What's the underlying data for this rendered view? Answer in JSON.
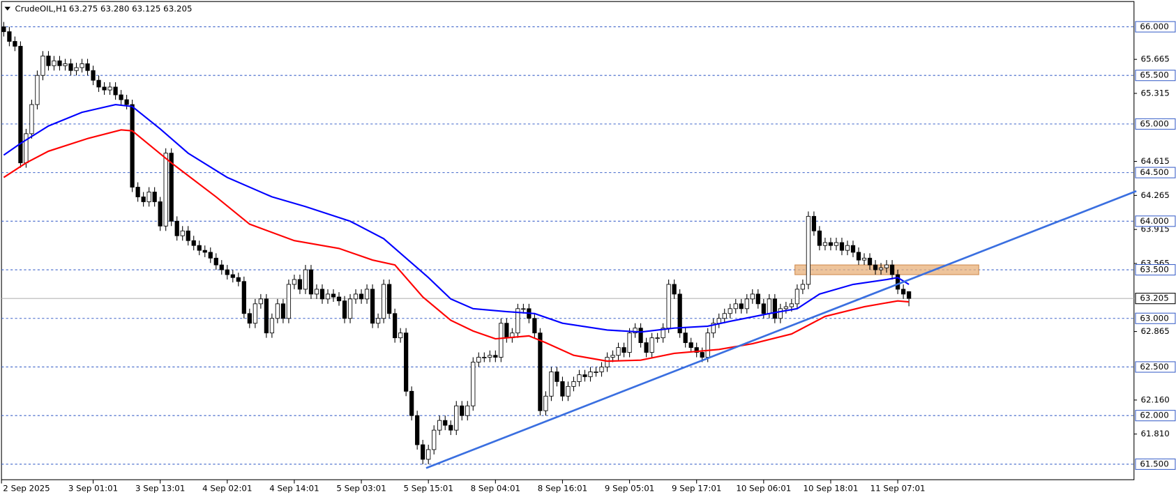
{
  "chart_data": {
    "type": "candlestick",
    "symbol": "CrudeOIL,H1",
    "quote": "63.275 63.280 63.125 63.205",
    "categories": [
      "2 Sep 2025",
      null,
      null,
      null,
      null,
      null,
      null,
      null,
      null,
      null,
      null,
      null,
      null,
      null,
      null,
      null,
      "3 Sep 01:01",
      null,
      null,
      null,
      null,
      null,
      null,
      null,
      null,
      null,
      null,
      null,
      "3 Sep 13:01",
      null,
      null,
      null,
      null,
      null,
      null,
      null,
      null,
      null,
      null,
      null,
      "4 Sep 02:01",
      null,
      null,
      null,
      null,
      null,
      null,
      null,
      null,
      null,
      null,
      null,
      "4 Sep 14:01",
      null,
      null,
      null,
      null,
      null,
      null,
      null,
      null,
      null,
      null,
      null,
      "5 Sep 03:01",
      null,
      null,
      null,
      null,
      null,
      null,
      null,
      null,
      null,
      null,
      null,
      "5 Sep 15:01",
      null,
      null,
      null,
      null,
      null,
      null,
      null,
      null,
      null,
      null,
      null,
      "8 Sep 04:01",
      null,
      null,
      null,
      null,
      null,
      null,
      null,
      null,
      null,
      null,
      null,
      "8 Sep 16:01",
      null,
      null,
      null,
      null,
      null,
      null,
      null,
      null,
      null,
      null,
      null,
      "9 Sep 05:01",
      null,
      null,
      null,
      null,
      null,
      null,
      null,
      null,
      null,
      null,
      null,
      "9 Sep 17:01",
      null,
      null,
      null,
      null,
      null,
      null,
      null,
      null,
      null,
      null,
      null,
      "10 Sep 06:01",
      null,
      null,
      null,
      null,
      null,
      null,
      null,
      null,
      null,
      null,
      null,
      "10 Sep 18:01",
      null,
      null,
      null,
      null,
      null,
      null,
      null,
      null,
      null,
      null,
      null,
      "11 Sep 07:01",
      null,
      null
    ],
    "open": [
      66.0,
      65.95,
      65.85,
      65.8,
      64.6,
      64.9,
      65.2,
      65.5,
      65.7,
      65.6,
      65.65,
      65.6,
      65.62,
      65.55,
      65.58,
      65.62,
      65.55,
      65.45,
      65.38,
      65.35,
      65.38,
      65.3,
      65.25,
      65.2,
      64.35,
      64.25,
      64.2,
      64.3,
      64.2,
      63.95,
      64.7,
      64.0,
      63.85,
      63.9,
      63.8,
      63.75,
      63.7,
      63.68,
      63.62,
      63.55,
      63.5,
      63.45,
      63.42,
      63.38,
      63.05,
      62.95,
      63.15,
      63.2,
      62.85,
      63.0,
      63.15,
      63.0,
      63.35,
      63.4,
      63.3,
      63.5,
      63.25,
      63.3,
      63.2,
      63.25,
      63.22,
      63.18,
      63.0,
      63.2,
      63.25,
      63.2,
      63.3,
      62.95,
      63.0,
      63.35,
      63.05,
      62.8,
      62.85,
      62.25,
      62.0,
      61.7,
      61.55,
      61.65,
      61.85,
      61.95,
      61.9,
      61.85,
      62.1,
      62.0,
      62.1,
      62.55,
      62.6,
      62.6,
      62.62,
      62.6,
      62.95,
      62.8,
      62.85,
      63.1,
      63.1,
      63.0,
      62.85,
      62.05,
      62.2,
      62.45,
      62.35,
      62.2,
      62.3,
      62.35,
      62.42,
      62.4,
      62.45,
      62.45,
      62.5,
      62.6,
      62.62,
      62.7,
      62.65,
      62.85,
      62.9,
      62.75,
      62.65,
      62.8,
      62.8,
      62.9,
      63.35,
      63.25,
      62.85,
      62.75,
      62.7,
      62.65,
      62.6,
      62.85,
      62.95,
      63.0,
      63.05,
      63.1,
      63.15,
      63.1,
      63.2,
      63.25,
      63.15,
      63.05,
      63.2,
      63.0,
      63.1,
      63.12,
      63.15,
      63.3,
      63.35,
      64.05,
      63.9,
      63.75,
      63.78,
      63.75,
      63.78,
      63.7,
      63.75,
      63.68,
      63.6,
      63.62,
      63.55,
      63.5,
      63.52,
      63.55,
      63.45,
      63.3,
      63.275
    ],
    "high": [
      66.05,
      66.0,
      65.9,
      65.85,
      64.95,
      65.25,
      65.55,
      65.75,
      65.75,
      65.7,
      65.7,
      65.67,
      65.67,
      65.63,
      65.67,
      65.67,
      65.6,
      65.5,
      65.43,
      65.43,
      65.43,
      65.35,
      65.3,
      65.25,
      64.4,
      64.3,
      64.35,
      64.35,
      64.25,
      64.75,
      64.75,
      64.05,
      63.95,
      63.95,
      63.85,
      63.8,
      63.75,
      63.73,
      63.67,
      63.6,
      63.55,
      63.5,
      63.47,
      63.43,
      63.1,
      63.2,
      63.25,
      63.25,
      63.05,
      63.2,
      63.2,
      63.4,
      63.45,
      63.45,
      63.55,
      63.55,
      63.35,
      63.35,
      63.3,
      63.3,
      63.27,
      63.23,
      63.25,
      63.3,
      63.3,
      63.35,
      63.35,
      63.05,
      63.4,
      63.4,
      63.1,
      62.9,
      62.9,
      62.3,
      62.05,
      61.75,
      61.7,
      61.9,
      62.0,
      62.0,
      61.95,
      62.15,
      62.15,
      62.15,
      62.6,
      62.65,
      62.65,
      62.67,
      62.67,
      63.0,
      63.0,
      62.9,
      63.15,
      63.15,
      63.15,
      63.05,
      62.9,
      62.25,
      62.5,
      62.5,
      62.4,
      62.35,
      62.4,
      62.47,
      62.47,
      62.5,
      62.5,
      62.55,
      62.65,
      62.67,
      62.75,
      62.75,
      62.9,
      62.95,
      62.95,
      62.8,
      62.85,
      62.85,
      62.95,
      63.4,
      63.4,
      63.3,
      62.9,
      62.8,
      62.75,
      62.7,
      62.9,
      63.0,
      63.05,
      63.1,
      63.15,
      63.2,
      63.2,
      63.25,
      63.3,
      63.3,
      63.2,
      63.25,
      63.25,
      63.15,
      63.17,
      63.2,
      63.35,
      63.4,
      64.1,
      64.1,
      63.95,
      63.83,
      63.83,
      63.83,
      63.83,
      63.8,
      63.8,
      63.73,
      63.67,
      63.67,
      63.6,
      63.57,
      63.6,
      63.6,
      63.5,
      63.35,
      63.28
    ],
    "low": [
      65.9,
      65.8,
      65.75,
      64.55,
      64.55,
      64.85,
      65.15,
      65.45,
      65.55,
      65.55,
      65.55,
      65.55,
      65.5,
      65.5,
      65.53,
      65.5,
      65.4,
      65.33,
      65.3,
      65.3,
      65.25,
      65.2,
      65.15,
      64.3,
      64.2,
      64.15,
      64.15,
      64.15,
      63.9,
      63.9,
      63.95,
      63.8,
      63.8,
      63.75,
      63.7,
      63.65,
      63.63,
      63.57,
      63.5,
      63.45,
      63.4,
      63.37,
      63.33,
      63.0,
      62.9,
      62.9,
      63.1,
      62.8,
      62.8,
      62.95,
      62.95,
      62.95,
      63.3,
      63.25,
      63.25,
      63.2,
      63.2,
      63.15,
      63.15,
      63.17,
      63.13,
      62.95,
      62.95,
      63.15,
      63.15,
      63.15,
      62.9,
      62.9,
      62.95,
      63.0,
      62.75,
      62.75,
      62.2,
      61.95,
      61.65,
      61.5,
      61.5,
      61.6,
      61.8,
      61.85,
      61.8,
      61.8,
      61.95,
      61.95,
      62.05,
      62.5,
      62.55,
      62.55,
      62.55,
      62.55,
      62.75,
      62.75,
      62.8,
      63.05,
      62.95,
      62.8,
      62.0,
      62.0,
      62.15,
      62.3,
      62.15,
      62.15,
      62.25,
      62.3,
      62.35,
      62.35,
      62.4,
      62.4,
      62.45,
      62.55,
      62.57,
      62.6,
      62.6,
      62.8,
      62.7,
      62.6,
      62.6,
      62.75,
      62.75,
      62.85,
      63.2,
      62.8,
      62.7,
      62.65,
      62.6,
      62.55,
      62.55,
      62.8,
      62.9,
      62.95,
      63.0,
      63.05,
      63.05,
      63.05,
      63.15,
      63.1,
      63.0,
      63.0,
      62.95,
      62.95,
      63.05,
      63.07,
      63.1,
      63.25,
      63.3,
      63.85,
      63.7,
      63.7,
      63.7,
      63.7,
      63.65,
      63.65,
      63.63,
      63.55,
      63.55,
      63.5,
      63.45,
      63.45,
      63.47,
      63.4,
      63.25,
      63.2,
      63.125
    ],
    "close": [
      65.95,
      65.85,
      65.8,
      64.6,
      64.9,
      65.2,
      65.5,
      65.7,
      65.6,
      65.65,
      65.6,
      65.62,
      65.55,
      65.58,
      65.62,
      65.55,
      65.45,
      65.38,
      65.35,
      65.38,
      65.3,
      65.25,
      65.2,
      64.35,
      64.25,
      64.2,
      64.3,
      64.2,
      63.95,
      64.7,
      64.0,
      63.85,
      63.9,
      63.8,
      63.75,
      63.7,
      63.68,
      63.62,
      63.55,
      63.5,
      63.45,
      63.42,
      63.38,
      63.05,
      62.95,
      63.15,
      63.2,
      62.85,
      63.0,
      63.15,
      63.0,
      63.35,
      63.4,
      63.3,
      63.5,
      63.25,
      63.3,
      63.2,
      63.25,
      63.22,
      63.18,
      63.0,
      63.2,
      63.25,
      63.2,
      63.3,
      62.95,
      63.0,
      63.35,
      63.05,
      62.8,
      62.85,
      62.25,
      62.0,
      61.7,
      61.55,
      61.65,
      61.85,
      61.95,
      61.9,
      61.85,
      62.1,
      62.0,
      62.1,
      62.55,
      62.6,
      62.6,
      62.62,
      62.6,
      62.95,
      62.8,
      62.85,
      63.1,
      63.1,
      63.0,
      62.85,
      62.05,
      62.2,
      62.45,
      62.35,
      62.2,
      62.3,
      62.35,
      62.42,
      62.4,
      62.45,
      62.45,
      62.5,
      62.6,
      62.62,
      62.7,
      62.65,
      62.85,
      62.9,
      62.75,
      62.65,
      62.8,
      62.8,
      62.9,
      63.35,
      63.25,
      62.85,
      62.75,
      62.7,
      62.65,
      62.6,
      62.85,
      62.95,
      63.0,
      63.05,
      63.1,
      63.15,
      63.1,
      63.2,
      63.25,
      63.15,
      63.05,
      63.2,
      63.0,
      63.1,
      63.12,
      63.15,
      63.3,
      63.35,
      64.05,
      63.9,
      63.75,
      63.78,
      63.75,
      63.78,
      63.7,
      63.75,
      63.68,
      63.6,
      63.62,
      63.55,
      63.5,
      63.52,
      63.55,
      63.45,
      63.3,
      63.25,
      63.205
    ],
    "lines": [
      {
        "color": "#0000ff",
        "x": [
          0,
          3,
          8,
          14,
          20,
          23,
          28,
          33,
          40,
          48,
          54,
          62,
          68,
          72,
          76,
          80,
          84,
          90,
          95,
          100,
          108,
          114,
          120,
          126,
          130,
          137,
          142,
          146,
          152,
          158,
          160,
          162
        ],
        "values": [
          64.68,
          64.8,
          64.98,
          65.12,
          65.2,
          65.18,
          64.95,
          64.7,
          64.45,
          64.25,
          64.15,
          64.0,
          63.82,
          63.62,
          63.42,
          63.2,
          63.1,
          63.07,
          63.05,
          62.95,
          62.88,
          62.86,
          62.9,
          62.92,
          62.97,
          63.05,
          63.1,
          63.25,
          63.35,
          63.4,
          63.42,
          63.35
        ]
      },
      {
        "color": "#ff0000",
        "x": [
          0,
          4,
          8,
          15,
          21,
          23,
          30,
          38,
          44,
          52,
          60,
          66,
          70,
          75,
          80,
          84,
          88,
          94,
          97,
          102,
          108,
          114,
          120,
          128,
          134,
          141,
          147,
          154,
          160,
          162
        ],
        "values": [
          64.45,
          64.6,
          64.72,
          64.85,
          64.94,
          64.93,
          64.6,
          64.25,
          63.97,
          63.8,
          63.72,
          63.6,
          63.55,
          63.22,
          62.98,
          62.87,
          62.79,
          62.82,
          62.75,
          62.62,
          62.56,
          62.57,
          62.64,
          62.68,
          62.74,
          62.84,
          63.02,
          63.12,
          63.18,
          63.17
        ]
      }
    ],
    "trendline": {
      "color": "#3a6fe0",
      "x": [
        75.6,
        202.7
      ],
      "values": [
        61.46,
        64.31
      ]
    },
    "zone": {
      "color": "#e8b07a",
      "x": [
        141.6,
        174.5
      ],
      "values": [
        63.45,
        63.55
      ]
    },
    "ylim": [
      61.34,
      66.26
    ],
    "yticks": [
      65.665,
      65.315,
      64.615,
      64.265,
      63.915,
      63.565,
      62.865,
      {
        "value": 62.16,
        "label": "62.160"
      },
      {
        "value": 61.81,
        "label": "61.810"
      }
    ],
    "levels": [
      {
        "value": 66,
        "label": "66.000"
      },
      {
        "value": 65.5,
        "label": "65.500"
      },
      {
        "value": 65,
        "label": "65.000"
      },
      {
        "value": 64.5,
        "label": "64.500"
      },
      {
        "value": 64,
        "label": "64.000"
      },
      {
        "value": 63.5,
        "label": "63.500"
      },
      {
        "value": 63,
        "label": "63.000"
      },
      {
        "value": 62.5,
        "label": "62.500"
      },
      {
        "value": 62,
        "label": "62.000"
      },
      {
        "value": 61.5,
        "label": "61.500"
      }
    ],
    "level_color": "#3e63c9",
    "current_price": 63.205,
    "bull_color": "#ffffff",
    "bear_color": "#000000"
  }
}
